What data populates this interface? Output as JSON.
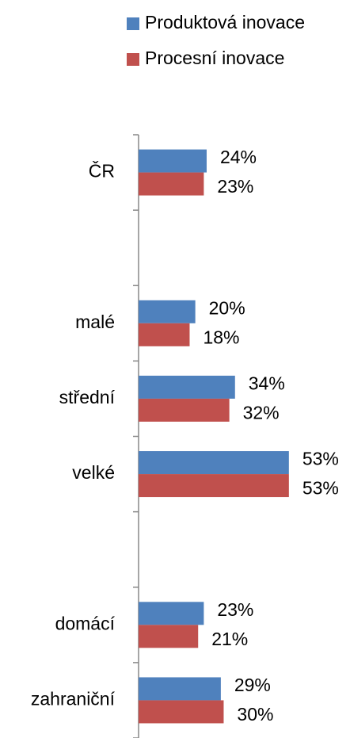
{
  "chart_data": {
    "type": "bar",
    "orientation": "horizontal",
    "categories": [
      "ČR",
      null,
      "malé",
      "střední",
      "velké",
      null,
      "domácí",
      "zahraniční"
    ],
    "series": [
      {
        "name": "Produktová inovace",
        "color": "#4f81bd",
        "values": [
          24,
          null,
          20,
          34,
          53,
          null,
          23,
          29
        ],
        "value_labels": [
          "24%",
          null,
          "20%",
          "34%",
          "53%",
          null,
          "23%",
          "29%"
        ]
      },
      {
        "name": "Procesní inovace",
        "color": "#c0504d",
        "values": [
          23,
          null,
          18,
          32,
          53,
          null,
          21,
          30
        ],
        "value_labels": [
          "23%",
          null,
          "18%",
          "32%",
          "53%",
          null,
          "21%",
          "30%"
        ]
      }
    ],
    "xlim": [
      0,
      55
    ],
    "legend": "top-right"
  }
}
